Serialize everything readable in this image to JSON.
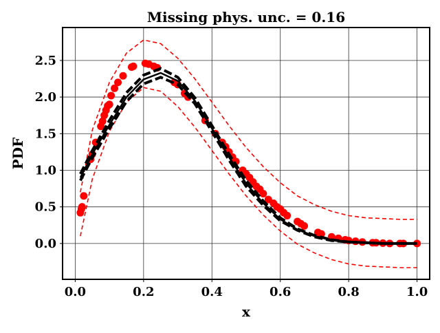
{
  "chart_data": {
    "type": "line",
    "title": "Missing phys. unc. = 0.16",
    "xlabel": "x",
    "ylabel": "PDF",
    "xlim": [
      -0.037,
      1.037
    ],
    "ylim": [
      -0.49,
      2.95
    ],
    "xticks": [
      "0.0",
      "0.2",
      "0.4",
      "0.6",
      "0.8",
      "1.0"
    ],
    "yticks": [
      "0.0",
      "0.5",
      "1.0",
      "1.5",
      "2.0",
      "2.5"
    ],
    "grid": true,
    "colors": {
      "points": "#ff0000",
      "band": "#ff0000",
      "model": "#000000"
    },
    "x": [
      0.015,
      0.05,
      0.1,
      0.15,
      0.2,
      0.25,
      0.3,
      0.35,
      0.4,
      0.45,
      0.5,
      0.55,
      0.6,
      0.65,
      0.7,
      0.75,
      0.8,
      0.85,
      0.9,
      0.95,
      1.0
    ],
    "series": [
      {
        "style": "black-solid",
        "values": [
          0.9,
          1.22,
          1.62,
          2.0,
          2.24,
          2.33,
          2.22,
          1.95,
          1.57,
          1.18,
          0.82,
          0.55,
          0.33,
          0.19,
          0.1,
          0.05,
          0.02,
          0.01,
          0.0,
          0.0,
          0.0
        ]
      },
      {
        "style": "black-dashed",
        "values": [
          0.95,
          1.27,
          1.68,
          2.06,
          2.3,
          2.39,
          2.27,
          1.99,
          1.61,
          1.22,
          0.86,
          0.58,
          0.35,
          0.2,
          0.11,
          0.05,
          0.02,
          0.01,
          0.0,
          0.0,
          0.0
        ]
      },
      {
        "style": "black-dashed",
        "values": [
          0.86,
          1.17,
          1.57,
          1.94,
          2.18,
          2.27,
          2.17,
          1.91,
          1.53,
          1.14,
          0.78,
          0.52,
          0.31,
          0.18,
          0.09,
          0.04,
          0.02,
          0.01,
          0.0,
          0.0,
          0.0
        ]
      },
      {
        "style": "red-dashed",
        "values": [
          0.7,
          1.55,
          2.2,
          2.6,
          2.78,
          2.73,
          2.53,
          2.25,
          1.93,
          1.61,
          1.31,
          1.05,
          0.83,
          0.65,
          0.53,
          0.44,
          0.38,
          0.35,
          0.34,
          0.33,
          0.33
        ]
      },
      {
        "style": "red-dashed",
        "values": [
          0.1,
          0.88,
          1.53,
          1.93,
          2.13,
          2.08,
          1.87,
          1.59,
          1.27,
          0.95,
          0.65,
          0.39,
          0.17,
          -0.01,
          -0.13,
          -0.22,
          -0.28,
          -0.31,
          -0.32,
          -0.33,
          -0.33
        ]
      }
    ],
    "points": [
      [
        0.015,
        0.42
      ],
      [
        0.018,
        0.47
      ],
      [
        0.02,
        0.5
      ],
      [
        0.025,
        0.65
      ],
      [
        0.045,
        1.15
      ],
      [
        0.05,
        1.22
      ],
      [
        0.06,
        1.38
      ],
      [
        0.065,
        1.35
      ],
      [
        0.075,
        1.6
      ],
      [
        0.08,
        1.67
      ],
      [
        0.085,
        1.75
      ],
      [
        0.09,
        1.82
      ],
      [
        0.095,
        1.88
      ],
      [
        0.1,
        1.9
      ],
      [
        0.105,
        2.02
      ],
      [
        0.115,
        2.12
      ],
      [
        0.125,
        2.2
      ],
      [
        0.14,
        2.29
      ],
      [
        0.165,
        2.41
      ],
      [
        0.17,
        2.42
      ],
      [
        0.205,
        2.46
      ],
      [
        0.215,
        2.45
      ],
      [
        0.23,
        2.42
      ],
      [
        0.24,
        2.4
      ],
      [
        0.29,
        2.2
      ],
      [
        0.3,
        2.17
      ],
      [
        0.32,
        2.05
      ],
      [
        0.33,
        2.0
      ],
      [
        0.38,
        1.68
      ],
      [
        0.41,
        1.5
      ],
      [
        0.43,
        1.38
      ],
      [
        0.44,
        1.32
      ],
      [
        0.45,
        1.25
      ],
      [
        0.46,
        1.18
      ],
      [
        0.47,
        1.12
      ],
      [
        0.49,
        1.0
      ],
      [
        0.5,
        0.95
      ],
      [
        0.51,
        0.9
      ],
      [
        0.52,
        0.84
      ],
      [
        0.53,
        0.78
      ],
      [
        0.54,
        0.74
      ],
      [
        0.55,
        0.68
      ],
      [
        0.565,
        0.6
      ],
      [
        0.58,
        0.55
      ],
      [
        0.59,
        0.5
      ],
      [
        0.6,
        0.47
      ],
      [
        0.61,
        0.42
      ],
      [
        0.62,
        0.38
      ],
      [
        0.65,
        0.3
      ],
      [
        0.66,
        0.27
      ],
      [
        0.67,
        0.24
      ],
      [
        0.71,
        0.15
      ],
      [
        0.72,
        0.13
      ],
      [
        0.75,
        0.09
      ],
      [
        0.77,
        0.07
      ],
      [
        0.79,
        0.05
      ],
      [
        0.8,
        0.04
      ],
      [
        0.82,
        0.03
      ],
      [
        0.84,
        0.02
      ],
      [
        0.87,
        0.01
      ],
      [
        0.88,
        0.01
      ],
      [
        0.9,
        0.005
      ],
      [
        0.92,
        0.0
      ],
      [
        0.95,
        0.0
      ],
      [
        0.96,
        0.0
      ],
      [
        1.0,
        0.0
      ]
    ]
  }
}
